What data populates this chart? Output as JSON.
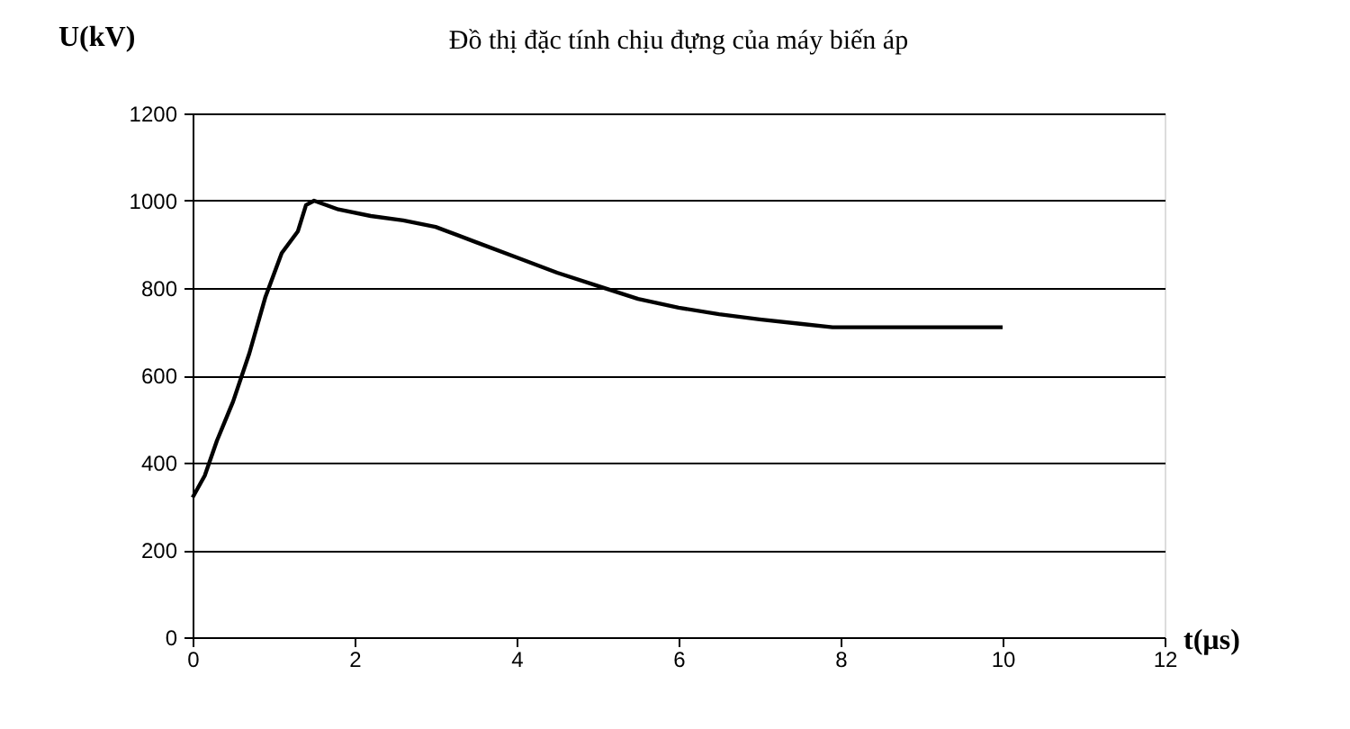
{
  "chart_data": {
    "type": "line",
    "title": "Đồ thị đặc tính chịu đựng của máy biến áp",
    "xlabel": "t(µs)",
    "ylabel": "U(kV)",
    "x": [
      0,
      0.15,
      0.3,
      0.5,
      0.7,
      0.9,
      1.1,
      1.3,
      1.4,
      1.5,
      1.8,
      2.2,
      2.6,
      3,
      3.5,
      4,
      4.5,
      5,
      5.5,
      6,
      6.5,
      7,
      7.5,
      7.9,
      8.5,
      9,
      10
    ],
    "series": [
      {
        "color": "#000000",
        "values": [
          320,
          370,
          450,
          540,
          650,
          780,
          880,
          930,
          990,
          1000,
          980,
          965,
          955,
          940,
          905,
          870,
          835,
          805,
          775,
          755,
          740,
          728,
          718,
          710,
          710,
          710,
          710
        ]
      }
    ],
    "xlim": [
      0,
      12
    ],
    "xticks": [
      0,
      2,
      4,
      6,
      8,
      10,
      12
    ],
    "ylim": [
      0,
      1200
    ],
    "yticks": [
      0,
      200,
      400,
      600,
      800,
      1000,
      1200
    ],
    "grid": "y",
    "legend": false,
    "marker": "none",
    "line_style": "solid"
  }
}
